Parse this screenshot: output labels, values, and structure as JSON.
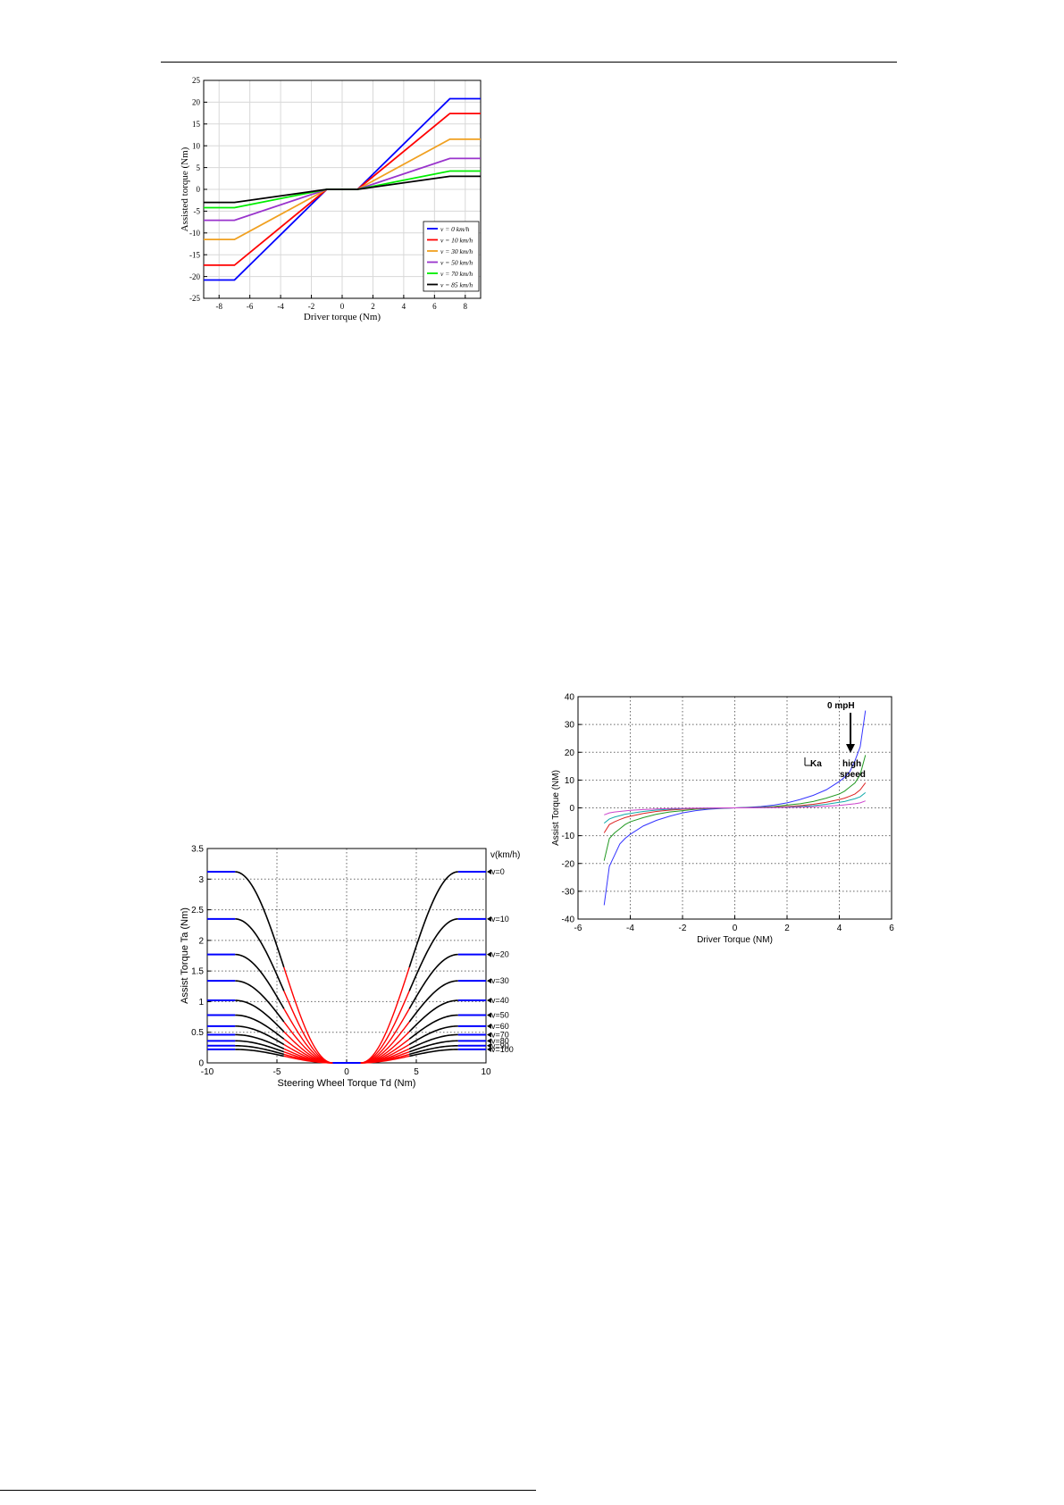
{
  "page": {
    "footer_text": ""
  },
  "chart_data": [
    {
      "type": "line",
      "xlabel": "Driver torque (Nm)",
      "ylabel": "Assisted torque (Nm)",
      "xlim": [
        -9,
        9
      ],
      "ylim": [
        -25,
        25
      ],
      "xticks": [
        -8,
        -6,
        -4,
        -2,
        0,
        2,
        4,
        6,
        8
      ],
      "yticks": [
        -25,
        -20,
        -15,
        -10,
        -5,
        0,
        5,
        10,
        15,
        20,
        25
      ],
      "grid": true,
      "legend": "bottom-right",
      "series": [
        {
          "name": "v = 0 km/h",
          "color": "#0000ff",
          "x": [
            -9,
            -7,
            -1,
            1,
            7,
            9
          ],
          "y": [
            -20.8,
            -20.8,
            0,
            0,
            20.8,
            20.8
          ]
        },
        {
          "name": "v = 10 km/h",
          "color": "#ff0000",
          "x": [
            -9,
            -7,
            -1,
            1,
            7,
            9
          ],
          "y": [
            -17.4,
            -17.4,
            0,
            0,
            17.4,
            17.4
          ]
        },
        {
          "name": "v = 30 km/h",
          "color": "#f0a020",
          "x": [
            -9,
            -7,
            -1,
            1,
            7,
            9
          ],
          "y": [
            -11.5,
            -11.5,
            0,
            0,
            11.5,
            11.5
          ]
        },
        {
          "name": "v = 50 km/h",
          "color": "#9933cc",
          "x": [
            -9,
            -7,
            -1,
            1,
            7,
            9
          ],
          "y": [
            -7.1,
            -7.1,
            0,
            0,
            7.1,
            7.1
          ]
        },
        {
          "name": "v = 70 km/h",
          "color": "#00ee00",
          "x": [
            -9,
            -7,
            -1,
            1,
            7,
            9
          ],
          "y": [
            -4.2,
            -4.2,
            0,
            0,
            4.2,
            4.2
          ]
        },
        {
          "name": "v = 85 km/h",
          "color": "#000000",
          "x": [
            -9,
            -7,
            -1,
            1,
            7,
            9
          ],
          "y": [
            -3.0,
            -3.0,
            0,
            0,
            3.0,
            3.0
          ]
        }
      ]
    },
    {
      "type": "line",
      "xlabel": "Driver Torque (NM)",
      "ylabel": "Assist Torque (NM)",
      "xlim": [
        -6,
        6
      ],
      "ylim": [
        -40,
        40
      ],
      "xticks": [
        -6,
        -4,
        -2,
        0,
        2,
        4,
        6
      ],
      "yticks": [
        -40,
        -30,
        -20,
        -10,
        0,
        10,
        20,
        30,
        40
      ],
      "grid": true,
      "annotations": [
        "0 mpH",
        "Ka",
        "high",
        "speed"
      ],
      "series": [
        {
          "color": "#3333ff",
          "x": [
            -5,
            -4.8,
            -4.6,
            -4.4,
            -4.2,
            -4,
            -3.5,
            -3,
            -2.5,
            -2,
            -1.5,
            -1,
            -0.5,
            0,
            0.5,
            1,
            1.5,
            2,
            2.5,
            3,
            3.5,
            4,
            4.2,
            4.4,
            4.6,
            4.8,
            5
          ],
          "y": [
            -35,
            -21,
            -17,
            -13,
            -11,
            -9.5,
            -6.5,
            -4.5,
            -3,
            -1.8,
            -1,
            -0.5,
            -0.2,
            0,
            0.2,
            0.5,
            1,
            1.8,
            3,
            4.5,
            6.5,
            9.5,
            11,
            13,
            17,
            22,
            35
          ]
        },
        {
          "color": "#229922",
          "x": [
            -5,
            -4.8,
            -4.6,
            -4.4,
            -4.2,
            -4,
            -3.5,
            -3,
            -2.5,
            -2,
            -1.5,
            -1,
            -0.5,
            0,
            0.5,
            1,
            1.5,
            2,
            2.5,
            3,
            3.5,
            4,
            4.2,
            4.4,
            4.6,
            4.8,
            5
          ],
          "y": [
            -19,
            -11,
            -9,
            -7.5,
            -6,
            -5,
            -3.5,
            -2.3,
            -1.5,
            -1,
            -0.5,
            -0.25,
            -0.1,
            0,
            0.1,
            0.25,
            0.5,
            1,
            1.5,
            2.3,
            3.5,
            5,
            6,
            7.5,
            9,
            12,
            19
          ]
        },
        {
          "color": "#dd2222",
          "x": [
            -5,
            -4.8,
            -4.6,
            -4.4,
            -4.2,
            -4,
            -3.5,
            -3,
            -2.5,
            -2,
            -1.5,
            -1,
            -0.5,
            0,
            0.5,
            1,
            1.5,
            2,
            2.5,
            3,
            3.5,
            4,
            4.2,
            4.4,
            4.6,
            4.8,
            5
          ],
          "y": [
            -9,
            -6,
            -5,
            -4.2,
            -3.5,
            -3,
            -2,
            -1.3,
            -0.8,
            -0.5,
            -0.3,
            -0.15,
            -0.05,
            0,
            0.05,
            0.15,
            0.3,
            0.5,
            0.8,
            1.3,
            2,
            3,
            3.5,
            4.2,
            5,
            6.5,
            9
          ]
        },
        {
          "color": "#11aaaa",
          "x": [
            -5,
            -4.8,
            -4.6,
            -4.4,
            -4.2,
            -4,
            -3.5,
            -3,
            -2.5,
            -2,
            -1.5,
            -1,
            -0.5,
            0,
            0.5,
            1,
            1.5,
            2,
            2.5,
            3,
            3.5,
            4,
            4.2,
            4.4,
            4.6,
            4.8,
            5
          ],
          "y": [
            -5.5,
            -4,
            -3.3,
            -2.8,
            -2.3,
            -2,
            -1.3,
            -0.8,
            -0.5,
            -0.3,
            -0.15,
            -0.08,
            -0.03,
            0,
            0.03,
            0.08,
            0.15,
            0.3,
            0.5,
            0.8,
            1.3,
            2,
            2.3,
            2.8,
            3.3,
            4,
            5.5
          ]
        },
        {
          "color": "#cc44cc",
          "x": [
            -5,
            -4.8,
            -4.6,
            -4.4,
            -4.2,
            -4,
            -3.5,
            -3,
            -2.5,
            -2,
            -1.5,
            -1,
            -0.5,
            0,
            0.5,
            1,
            1.5,
            2,
            2.5,
            3,
            3.5,
            4,
            4.2,
            4.4,
            4.6,
            4.8,
            5
          ],
          "y": [
            -2.5,
            -1.8,
            -1.5,
            -1.3,
            -1.1,
            -0.9,
            -0.6,
            -0.4,
            -0.25,
            -0.15,
            -0.08,
            -0.04,
            -0.01,
            0,
            0.01,
            0.04,
            0.08,
            0.15,
            0.25,
            0.4,
            0.6,
            0.9,
            1.1,
            1.3,
            1.5,
            1.8,
            2.5
          ]
        }
      ]
    },
    {
      "type": "line",
      "xlabel": "Steering Wheel Torque Td (Nm)",
      "ylabel": "Assist Torque Ta (Nm)",
      "xlim": [
        -10,
        10
      ],
      "ylim": [
        0,
        3.5
      ],
      "xticks": [
        -10,
        -5,
        0,
        5,
        10
      ],
      "yticks": [
        0,
        0.5,
        1,
        1.5,
        2,
        2.5,
        3,
        3.5
      ],
      "grid": true,
      "legend_title": "v(km/h)",
      "deadband": 1,
      "saturation": 8,
      "series": [
        {
          "name": "v=0",
          "value": 3.12
        },
        {
          "name": "v=10",
          "value": 2.35
        },
        {
          "name": "v=20",
          "value": 1.77
        },
        {
          "name": "v=30",
          "value": 1.34
        },
        {
          "name": "v=40",
          "value": 1.02
        },
        {
          "name": "v=50",
          "value": 0.78
        },
        {
          "name": "v=60",
          "value": 0.6
        },
        {
          "name": "v=70",
          "value": 0.46
        },
        {
          "name": "v=80",
          "value": 0.36
        },
        {
          "name": "v=90",
          "value": 0.28
        },
        {
          "name": "v=100",
          "value": 0.22
        }
      ]
    }
  ]
}
